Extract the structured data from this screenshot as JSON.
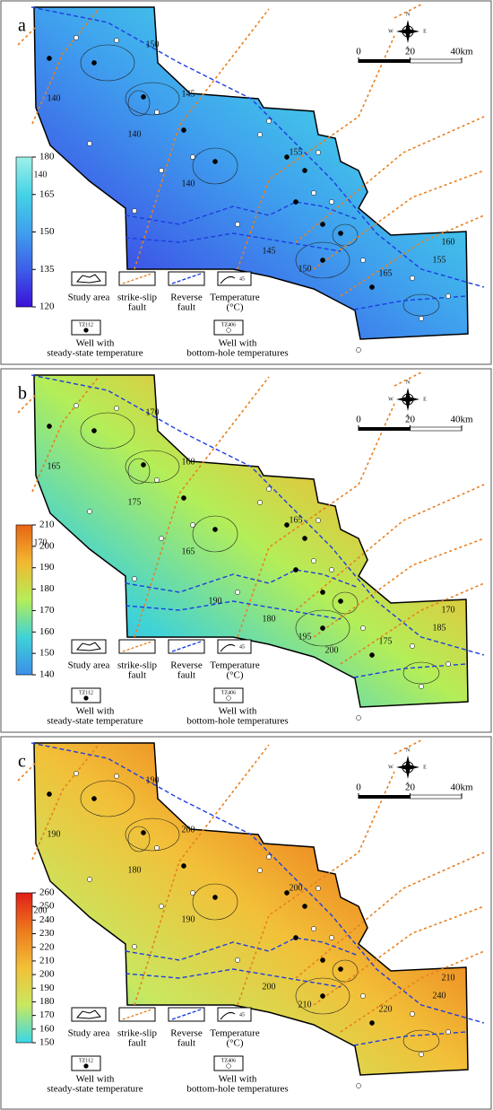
{
  "panels": [
    {
      "label": "a",
      "colormap": [
        "#3a10d8",
        "#3d5fe8",
        "#3fa0ee",
        "#44d3e6",
        "#9ff0e8"
      ],
      "colorbar_lim": [
        120,
        180
      ],
      "colorbar_ticks": [
        120,
        135,
        150,
        165,
        180
      ],
      "contour_labels": [
        150,
        140,
        145,
        140,
        140,
        140,
        145,
        155,
        160,
        165,
        155,
        150
      ]
    },
    {
      "label": "b",
      "colormap": [
        "#3b8ee8",
        "#3fd2d8",
        "#b4ee58",
        "#f2b832",
        "#e86412"
      ],
      "colorbar_lim": [
        140,
        210
      ],
      "colorbar_ticks": [
        140,
        150,
        160,
        170,
        180,
        190,
        200,
        210
      ],
      "contour_labels": [
        170,
        165,
        160,
        175,
        170,
        165,
        180,
        165,
        170,
        175,
        185,
        195,
        190,
        200
      ]
    },
    {
      "label": "c",
      "colormap": [
        "#38d8e8",
        "#c8e860",
        "#f2c038",
        "#ec7a1c",
        "#e01e18"
      ],
      "colorbar_lim": [
        150,
        260
      ],
      "colorbar_ticks": [
        150,
        160,
        170,
        180,
        190,
        200,
        210,
        220,
        230,
        240,
        250,
        260
      ],
      "contour_labels": [
        190,
        190,
        200,
        180,
        200,
        190,
        200,
        200,
        210,
        220,
        240,
        210
      ]
    }
  ],
  "compass": [
    "N",
    "E",
    "S",
    "W"
  ],
  "scale_bar": {
    "ticks": [
      0,
      20,
      {
        "value": 40,
        "label": "40km"
      }
    ]
  },
  "legend": {
    "study_area": "Study area",
    "strike_slip": [
      "strike-slip",
      "fault"
    ],
    "reverse": [
      "Reverse",
      "fault"
    ],
    "temperature": [
      "Temperature",
      "(°C)"
    ],
    "contour_sample": "45",
    "well_steady": {
      "id": "TZ112",
      "text": [
        "Well with",
        "steady-state temperature"
      ]
    },
    "well_bht": {
      "id": "TZ406",
      "text": [
        "Well with",
        "bottom-hole temperatures"
      ]
    }
  }
}
